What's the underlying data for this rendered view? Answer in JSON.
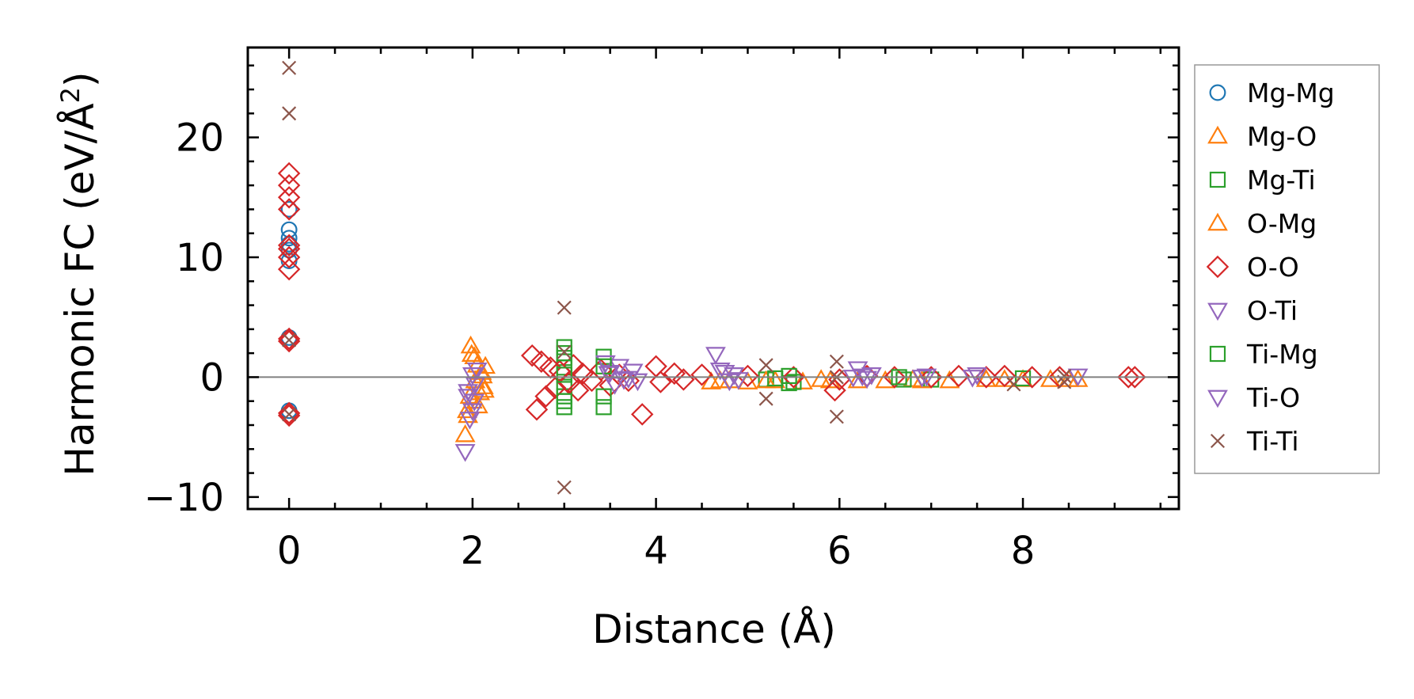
{
  "chart_data": {
    "type": "scatter",
    "xlabel": "Distance (Å)",
    "ylabel_main": "Harmonic FC (eV/Å",
    "ylabel_sup": "2",
    "ylabel_end": ")",
    "xlim": [
      -0.45,
      9.7
    ],
    "ylim": [
      -11,
      27.5
    ],
    "xticks": [
      0,
      2,
      4,
      6,
      8
    ],
    "xtick_labels": [
      "0",
      "2",
      "4",
      "6",
      "8"
    ],
    "yticks": [
      -10,
      0,
      10,
      20
    ],
    "ytick_labels": [
      "−10",
      "0",
      "10",
      "20"
    ],
    "zero_line": true,
    "grid": false,
    "legend_position": "outside-right",
    "series": [
      {
        "name": "Mg-Mg",
        "marker": "circle",
        "color": "#1f77b4",
        "points": [
          [
            0,
            14
          ],
          [
            0,
            12.3
          ],
          [
            0,
            11.6
          ],
          [
            0,
            11.1
          ],
          [
            0,
            10.6
          ],
          [
            0,
            9.7
          ],
          [
            0,
            3.3
          ],
          [
            0,
            -2.8
          ]
        ]
      },
      {
        "name": "Mg-O",
        "marker": "triangle-up",
        "color": "#ff7f0e",
        "points": [
          [
            1.92,
            -4.8
          ],
          [
            1.95,
            -3.2
          ],
          [
            1.98,
            2.6
          ],
          [
            2.0,
            -2.0
          ],
          [
            2.02,
            1.7
          ],
          [
            2.05,
            1.0
          ],
          [
            2.08,
            -1.3
          ],
          [
            2.1,
            0.4
          ],
          [
            2.12,
            -0.8
          ],
          [
            2.14,
            0.9
          ],
          [
            1.97,
            -1.6
          ],
          [
            2.03,
            -0.3
          ],
          [
            4.6,
            -0.4
          ],
          [
            4.8,
            -0.3
          ],
          [
            5.0,
            -0.4
          ],
          [
            5.3,
            -0.3
          ],
          [
            5.6,
            -0.4
          ],
          [
            5.8,
            -0.2
          ],
          [
            6.2,
            -0.3
          ],
          [
            6.5,
            -0.3
          ],
          [
            6.8,
            -0.2
          ],
          [
            7.2,
            -0.3
          ],
          [
            7.6,
            -0.2
          ],
          [
            8.0,
            -0.2
          ],
          [
            8.3,
            -0.2
          ],
          [
            8.6,
            -0.2
          ]
        ]
      },
      {
        "name": "Mg-Ti",
        "marker": "square",
        "color": "#2ca02c",
        "points": [
          [
            3.0,
            2.5
          ],
          [
            3.0,
            1.6
          ],
          [
            3.0,
            0.8
          ],
          [
            3.0,
            -0.8
          ],
          [
            3.0,
            -1.6
          ],
          [
            3.0,
            -2.5
          ],
          [
            3.43,
            1.7
          ],
          [
            3.43,
            -2.5
          ],
          [
            5.2,
            -0.2
          ],
          [
            5.45,
            -0.5
          ],
          [
            5.5,
            -0.4
          ],
          [
            6.7,
            -0.2
          ],
          [
            7.0,
            -0.2
          ],
          [
            8.0,
            -0.1
          ]
        ]
      },
      {
        "name": "O-Mg",
        "marker": "triangle-up",
        "color": "#ff7f0e",
        "points": [
          [
            1.94,
            -2.8
          ],
          [
            1.99,
            1.9
          ],
          [
            2.06,
            -2.4
          ],
          [
            2.11,
            0.1
          ],
          [
            2.13,
            -1.1
          ],
          [
            4.7,
            -0.3
          ],
          [
            5.2,
            -0.3
          ],
          [
            5.9,
            -0.3
          ],
          [
            6.9,
            -0.3
          ],
          [
            7.8,
            -0.2
          ],
          [
            8.5,
            -0.2
          ]
        ]
      },
      {
        "name": "O-O",
        "marker": "diamond",
        "color": "#d62728",
        "points": [
          [
            0,
            17
          ],
          [
            0,
            16
          ],
          [
            0,
            15
          ],
          [
            0,
            14
          ],
          [
            0,
            11
          ],
          [
            0,
            10.7
          ],
          [
            0,
            10
          ],
          [
            0,
            9
          ],
          [
            0,
            3.2
          ],
          [
            0,
            3.0
          ],
          [
            0,
            -3
          ],
          [
            0,
            -3.2
          ],
          [
            2.65,
            1.8
          ],
          [
            2.7,
            -2.7
          ],
          [
            2.75,
            1.3
          ],
          [
            2.8,
            -1.6
          ],
          [
            2.85,
            0.8
          ],
          [
            2.9,
            -0.9
          ],
          [
            2.95,
            0.5
          ],
          [
            3.05,
            -0.5
          ],
          [
            3.1,
            1.0
          ],
          [
            3.15,
            -1.1
          ],
          [
            3.2,
            0.3
          ],
          [
            3.3,
            -0.3
          ],
          [
            3.4,
            0.6
          ],
          [
            3.5,
            -0.7
          ],
          [
            3.6,
            0.2
          ],
          [
            3.7,
            -0.3
          ],
          [
            3.85,
            -3.1
          ],
          [
            4.0,
            0.9
          ],
          [
            4.05,
            -0.4
          ],
          [
            4.2,
            0.3
          ],
          [
            4.3,
            -0.2
          ],
          [
            4.5,
            0.2
          ],
          [
            5.0,
            0.1
          ],
          [
            5.5,
            0.0
          ],
          [
            5.95,
            -1.1
          ],
          [
            6.0,
            -0.2
          ],
          [
            6.3,
            0.1
          ],
          [
            6.6,
            0.0
          ],
          [
            7.0,
            0.0
          ],
          [
            7.3,
            0.1
          ],
          [
            7.6,
            0.0
          ],
          [
            7.8,
            0.1
          ],
          [
            8.1,
            0.0
          ],
          [
            8.4,
            0.0
          ],
          [
            9.15,
            0.0
          ],
          [
            9.22,
            0.0
          ]
        ]
      },
      {
        "name": "O-Ti",
        "marker": "triangle-down",
        "color": "#9467bd",
        "points": [
          [
            1.92,
            -6.2
          ],
          [
            1.95,
            -1.2
          ],
          [
            1.97,
            -3.5
          ],
          [
            2.0,
            0.2
          ],
          [
            2.02,
            -2.0
          ],
          [
            2.05,
            0.6
          ],
          [
            3.45,
            1.2
          ],
          [
            3.5,
            0.4
          ],
          [
            3.55,
            -0.6
          ],
          [
            3.6,
            0.9
          ],
          [
            3.65,
            -0.2
          ],
          [
            3.75,
            0.5
          ],
          [
            3.8,
            -0.3
          ],
          [
            4.65,
            1.9
          ],
          [
            4.75,
            0.4
          ],
          [
            4.8,
            -0.3
          ],
          [
            4.85,
            0.2
          ],
          [
            6.2,
            0.7
          ],
          [
            6.25,
            0.1
          ],
          [
            6.35,
            0.2
          ],
          [
            6.95,
            0.1
          ],
          [
            7.5,
            0.2
          ],
          [
            8.6,
            0.1
          ]
        ]
      },
      {
        "name": "Ti-Mg",
        "marker": "square",
        "color": "#2ca02c",
        "points": [
          [
            3.0,
            2.0
          ],
          [
            3.0,
            -2.0
          ],
          [
            3.0,
            0.2
          ],
          [
            3.43,
            0.9
          ],
          [
            3.43,
            -1.6
          ],
          [
            5.3,
            -0.1
          ],
          [
            5.45,
            0.1
          ],
          [
            6.65,
            0.0
          ]
        ]
      },
      {
        "name": "Ti-O",
        "marker": "triangle-down",
        "color": "#9467bd",
        "points": [
          [
            1.95,
            -1.6
          ],
          [
            2.0,
            -2.8
          ],
          [
            2.03,
            -0.6
          ],
          [
            3.48,
            0.3
          ],
          [
            3.7,
            -0.1
          ],
          [
            4.7,
            0.6
          ],
          [
            4.9,
            -0.2
          ],
          [
            6.15,
            0.0
          ],
          [
            6.3,
            -0.1
          ],
          [
            6.9,
            0.0
          ],
          [
            7.45,
            0.0
          ]
        ]
      },
      {
        "name": "Ti-Ti",
        "marker": "x",
        "color": "#8c564b",
        "points": [
          [
            0,
            25.8
          ],
          [
            0,
            22
          ],
          [
            0,
            3.1
          ],
          [
            0,
            -3.1
          ],
          [
            3.0,
            5.8
          ],
          [
            3.0,
            2.1
          ],
          [
            3.0,
            -9.2
          ],
          [
            5.2,
            1.0
          ],
          [
            5.2,
            -1.8
          ],
          [
            5.97,
            1.3
          ],
          [
            5.97,
            -3.3
          ],
          [
            5.97,
            0.0
          ],
          [
            7.9,
            -0.6
          ],
          [
            8.45,
            0.1
          ],
          [
            8.45,
            -0.4
          ]
        ]
      }
    ]
  }
}
